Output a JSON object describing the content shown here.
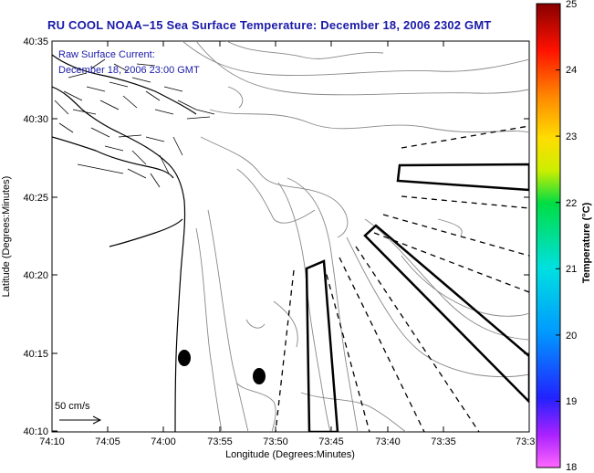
{
  "title": "RU COOL  NOAA−15  Sea Surface Temperature:  December 18, 2006 2302 GMT",
  "annotation": {
    "line1": "Raw Surface Current:",
    "line2": "December 18, 2006 23:00 GMT"
  },
  "scale_label": "50 cm/s",
  "axes": {
    "ylabel": "Latitude (Degrees:Minutes)",
    "xlabel": "Longitude (Degrees:Minutes)",
    "yticks": [
      "40:35",
      "40:30",
      "40:25",
      "40:20",
      "40:15",
      "40:10"
    ],
    "xticks": [
      "74:10",
      "74:05",
      "74:00",
      "73:55",
      "73:50",
      "73:45",
      "73:40",
      "73:35",
      "73:3"
    ]
  },
  "colorbar": {
    "label": "Temperature (°C)",
    "ticks": [
      "25",
      "24",
      "23",
      "22",
      "21",
      "20",
      "19",
      "18"
    ],
    "range": [
      18,
      25
    ]
  },
  "colors": {
    "title": "#1a1aa8",
    "contour": "#888888",
    "coast": "#000000"
  }
}
